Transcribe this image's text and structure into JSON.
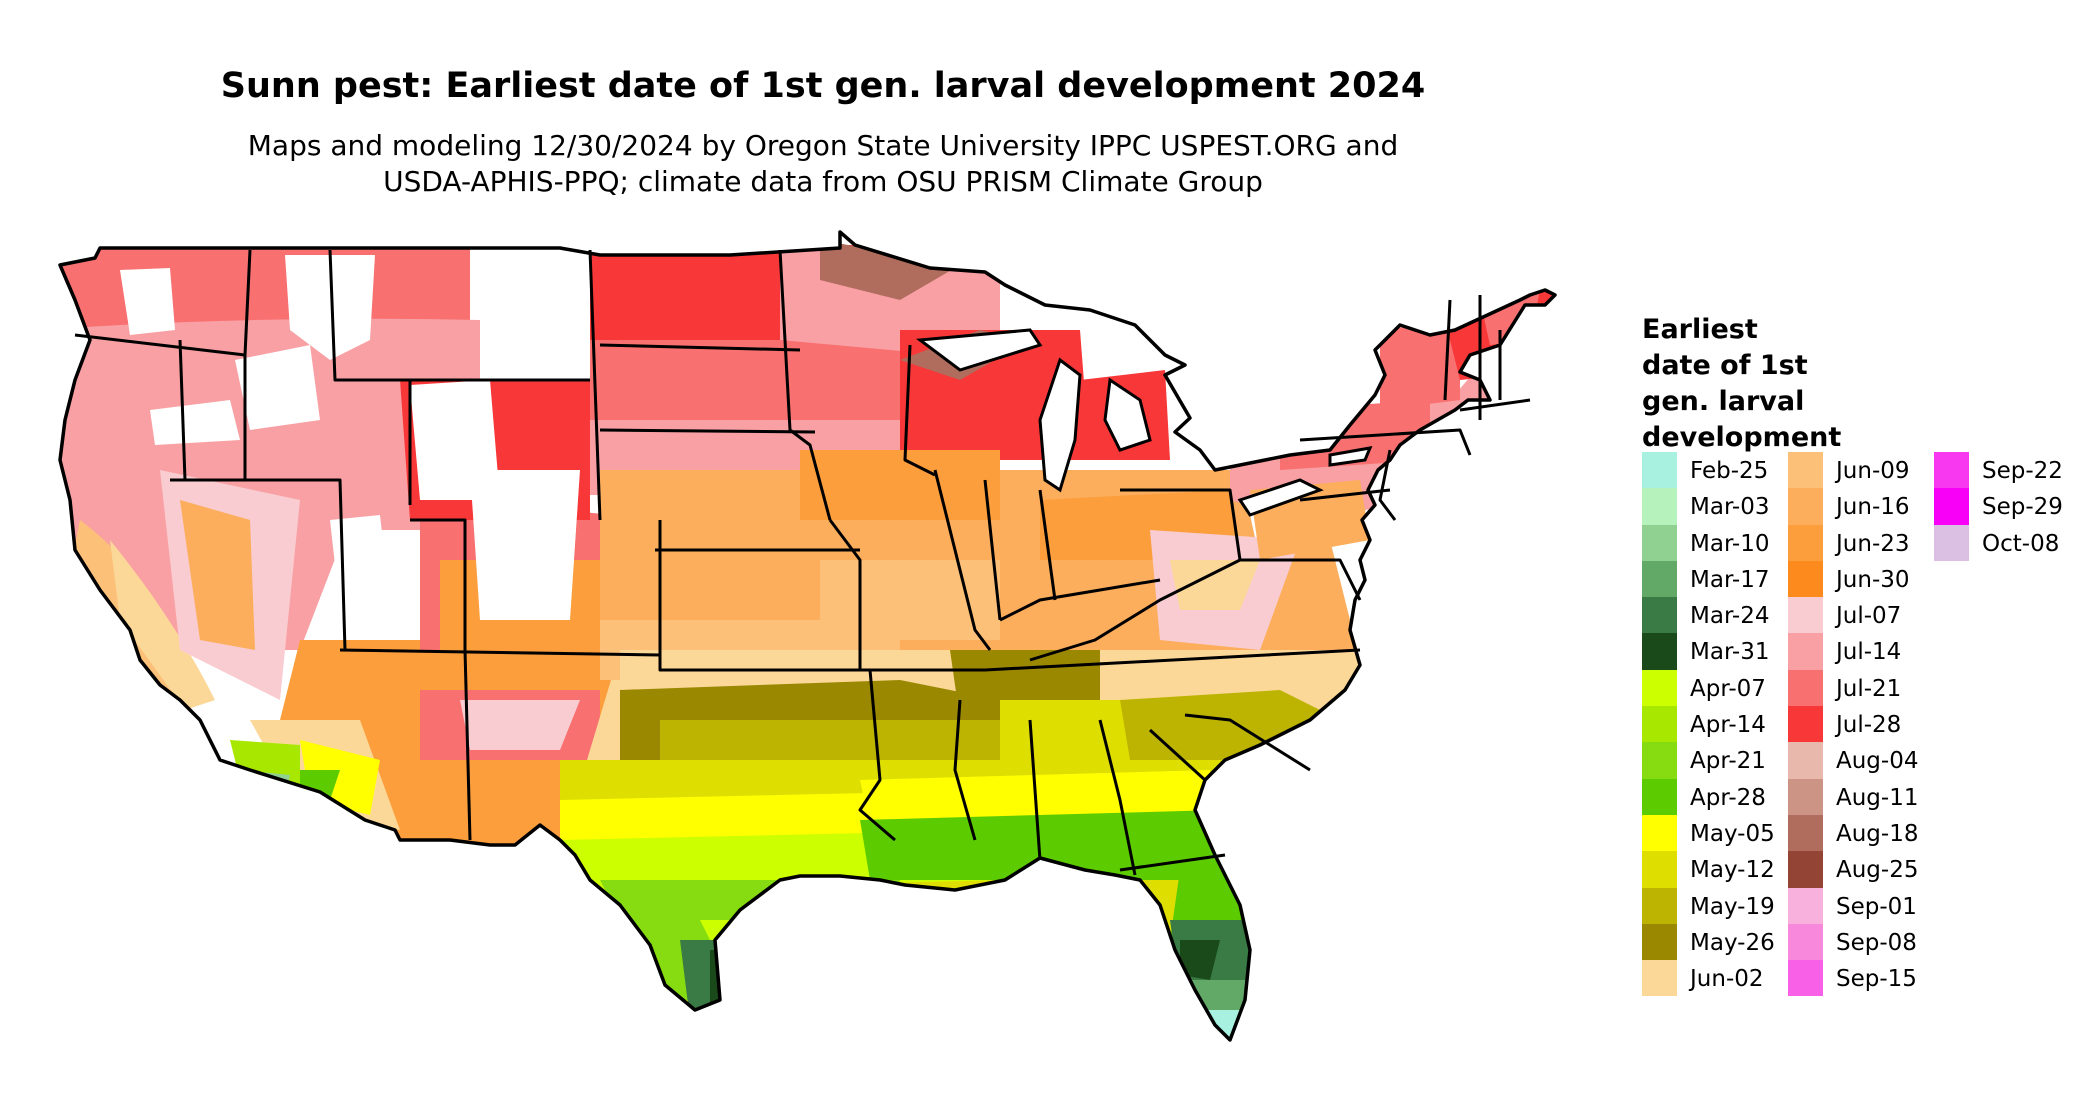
{
  "title": "Sunn pest: Earliest date of 1st gen. larval development 2024",
  "subtitle": {
    "line1": "Maps and modeling 12/30/2024 by Oregon State University IPPC USPEST.ORG and",
    "line2": "USDA-APHIS-PPQ; climate data from OSU PRISM Climate Group"
  },
  "legend": {
    "title_lines": [
      "Earliest",
      "date of 1st",
      "gen. larval",
      "development"
    ],
    "columns": [
      [
        {
          "label": "Feb-25",
          "color": "#a8f0e0"
        },
        {
          "label": "Mar-03",
          "color": "#b6f2bc"
        },
        {
          "label": "Mar-10",
          "color": "#90d090"
        },
        {
          "label": "Mar-17",
          "color": "#62a866"
        },
        {
          "label": "Mar-24",
          "color": "#3a7a44"
        },
        {
          "label": "Mar-31",
          "color": "#1a4a1a"
        },
        {
          "label": "Apr-07",
          "color": "#ccff00"
        },
        {
          "label": "Apr-14",
          "color": "#a8e800"
        },
        {
          "label": "Apr-21",
          "color": "#86dc10"
        },
        {
          "label": "Apr-28",
          "color": "#5ccc00"
        },
        {
          "label": "May-05",
          "color": "#ffff00"
        },
        {
          "label": "May-12",
          "color": "#dede00"
        },
        {
          "label": "May-19",
          "color": "#bcb400"
        },
        {
          "label": "May-26",
          "color": "#9a8800"
        },
        {
          "label": "Jun-02",
          "color": "#fcd898"
        }
      ],
      [
        {
          "label": "Jun-09",
          "color": "#fcc078"
        },
        {
          "label": "Jun-16",
          "color": "#fcae5c"
        },
        {
          "label": "Jun-23",
          "color": "#fc9e3c"
        },
        {
          "label": "Jun-30",
          "color": "#fc8a1c"
        },
        {
          "label": "Jul-07",
          "color": "#f8ccd0"
        },
        {
          "label": "Jul-14",
          "color": "#f8a0a4"
        },
        {
          "label": "Jul-21",
          "color": "#f87070"
        },
        {
          "label": "Jul-28",
          "color": "#f83838"
        },
        {
          "label": "Aug-04",
          "color": "#e8b8ac"
        },
        {
          "label": "Aug-11",
          "color": "#cc9484"
        },
        {
          "label": "Aug-18",
          "color": "#b06c5c"
        },
        {
          "label": "Aug-25",
          "color": "#944434"
        },
        {
          "label": "Sep-01",
          "color": "#f8b0dc"
        },
        {
          "label": "Sep-08",
          "color": "#f888dc"
        },
        {
          "label": "Sep-15",
          "color": "#f860e8"
        }
      ],
      [
        {
          "label": "Sep-22",
          "color": "#f838f0"
        },
        {
          "label": "Sep-29",
          "color": "#f800f8"
        },
        {
          "label": "Oct-08",
          "color": "#dcc0e4"
        }
      ]
    ]
  }
}
